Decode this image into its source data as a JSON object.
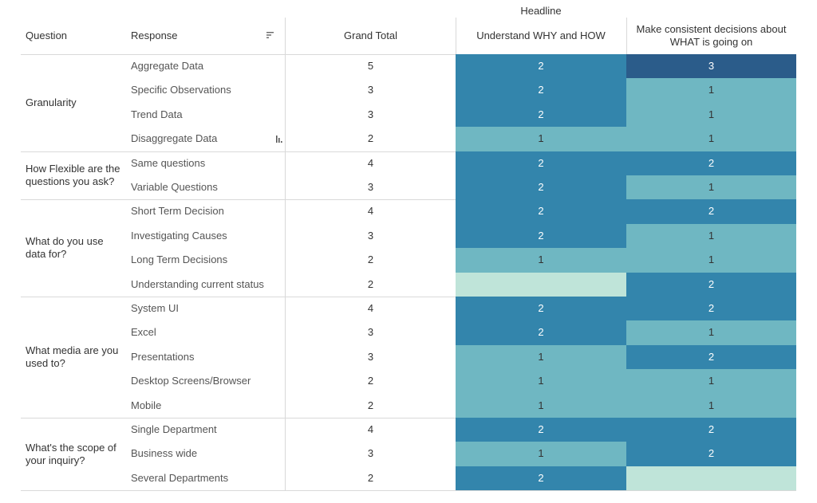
{
  "header": {
    "headline": "Headline",
    "question": "Question",
    "response": "Response",
    "grand_total": "Grand Total",
    "col1": "Understand WHY and HOW",
    "col2_line1": "Make consistent decisions about",
    "col2_line2": "WHAT is going on"
  },
  "colors": {
    "level0": "#bfe4d9",
    "level1": "#6fb7c2",
    "level2": "#3385ac",
    "level3": "#2b5c8a"
  },
  "icons": {
    "sort": "sort-icon",
    "bar": "bar-chart-icon"
  },
  "chart_data": {
    "type": "heatmap",
    "title": "",
    "column_header": "Headline",
    "columns": [
      "Understand WHY and HOW",
      "Make consistent decisions about WHAT is going on"
    ],
    "groups": [
      {
        "question": "Granularity",
        "rows": [
          {
            "response": "Aggregate Data",
            "grand_total": 5,
            "values": [
              2,
              3
            ]
          },
          {
            "response": "Specific Observations",
            "grand_total": 3,
            "values": [
              2,
              1
            ]
          },
          {
            "response": "Trend Data",
            "grand_total": 3,
            "values": [
              2,
              1
            ]
          },
          {
            "response": "Disaggregate Data",
            "grand_total": 2,
            "values": [
              1,
              1
            ]
          }
        ]
      },
      {
        "question": "How Flexible are the questions you ask?",
        "rows": [
          {
            "response": "Same questions",
            "grand_total": 4,
            "values": [
              2,
              2
            ]
          },
          {
            "response": "Variable Questions",
            "grand_total": 3,
            "values": [
              2,
              1
            ]
          }
        ]
      },
      {
        "question": "What do you use data for?",
        "rows": [
          {
            "response": "Short Term Decision",
            "grand_total": 4,
            "values": [
              2,
              2
            ]
          },
          {
            "response": "Investigating Causes",
            "grand_total": 3,
            "values": [
              2,
              1
            ]
          },
          {
            "response": "Long Term Decisions",
            "grand_total": 2,
            "values": [
              1,
              1
            ]
          },
          {
            "response": "Understanding current status",
            "grand_total": 2,
            "values": [
              null,
              2
            ]
          }
        ]
      },
      {
        "question": "What media are you used to?",
        "rows": [
          {
            "response": "System UI",
            "grand_total": 4,
            "values": [
              2,
              2
            ]
          },
          {
            "response": "Excel",
            "grand_total": 3,
            "values": [
              2,
              1
            ]
          },
          {
            "response": "Presentations",
            "grand_total": 3,
            "values": [
              1,
              2
            ]
          },
          {
            "response": "Desktop Screens/Browser",
            "grand_total": 2,
            "values": [
              1,
              1
            ]
          },
          {
            "response": "Mobile",
            "grand_total": 2,
            "values": [
              1,
              1
            ]
          }
        ]
      },
      {
        "question": "What's the scope of your inquiry?",
        "rows": [
          {
            "response": "Single Department",
            "grand_total": 4,
            "values": [
              2,
              2
            ]
          },
          {
            "response": "Business wide",
            "grand_total": 3,
            "values": [
              1,
              2
            ]
          },
          {
            "response": "Several Departments",
            "grand_total": 2,
            "values": [
              2,
              null
            ]
          }
        ]
      }
    ]
  }
}
